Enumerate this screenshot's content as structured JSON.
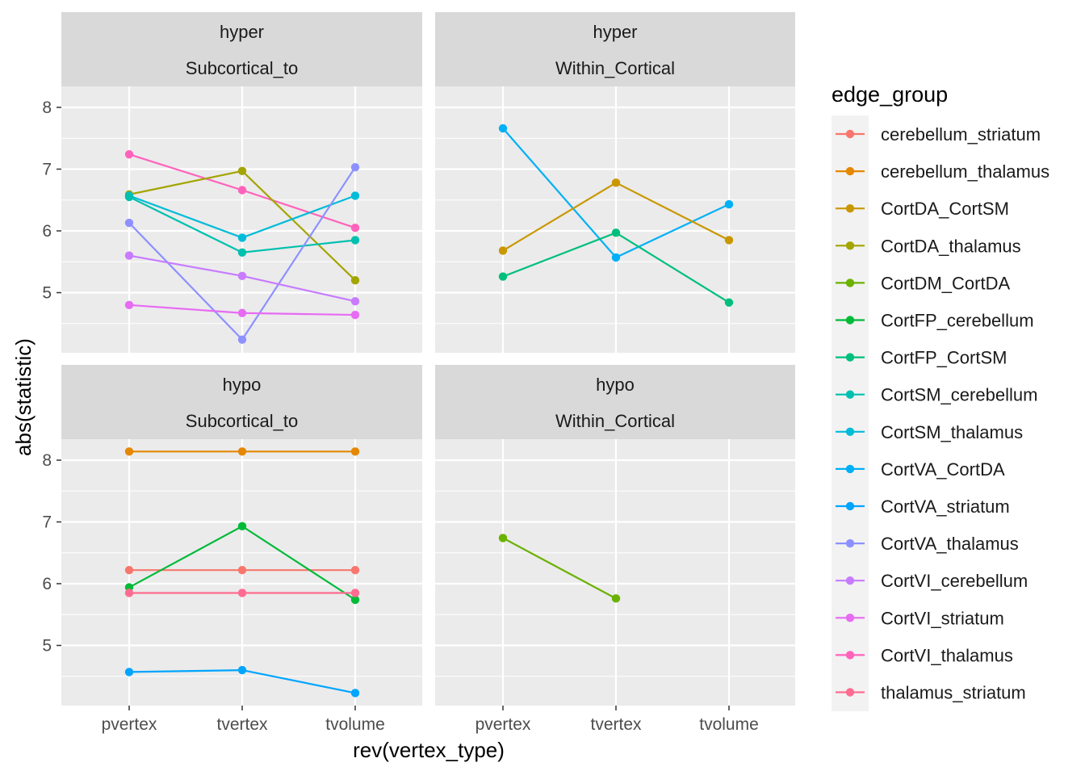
{
  "chart_data": {
    "type": "line",
    "xlabel": "rev(vertex_type)",
    "ylabel": "abs(statistic)",
    "x_categories": [
      "pvertex",
      "tvertex",
      "tvolume"
    ],
    "y_ticks": [
      5,
      6,
      7,
      8
    ],
    "grid": true,
    "facet_rows": [
      "hyper",
      "hypo"
    ],
    "facet_cols": [
      "Subcortical_to",
      "Within_Cortical"
    ],
    "legend": {
      "title": "edge_group",
      "position": "right",
      "entries": [
        {
          "name": "cerebellum_striatum",
          "color": "#F8766D"
        },
        {
          "name": "cerebellum_thalamus",
          "color": "#E58700"
        },
        {
          "name": "CortDA_CortSM",
          "color": "#C99800"
        },
        {
          "name": "CortDA_thalamus",
          "color": "#A3A500"
        },
        {
          "name": "CortDM_CortDA",
          "color": "#6BB100"
        },
        {
          "name": "CortFP_cerebellum",
          "color": "#00BA38"
        },
        {
          "name": "CortFP_CortSM",
          "color": "#00BF7D"
        },
        {
          "name": "CortSM_cerebellum",
          "color": "#00C0AF"
        },
        {
          "name": "CortSM_thalamus",
          "color": "#00BCD8"
        },
        {
          "name": "CortVA_CortDA",
          "color": "#00B0F6"
        },
        {
          "name": "CortVA_striatum",
          "color": "#00A5FF"
        },
        {
          "name": "CortVA_thalamus",
          "color": "#8D91FF"
        },
        {
          "name": "CortVI_cerebellum",
          "color": "#C77CFF"
        },
        {
          "name": "CortVI_striatum",
          "color": "#E76BF3"
        },
        {
          "name": "CortVI_thalamus",
          "color": "#FF62BC"
        },
        {
          "name": "thalamus_striatum",
          "color": "#FF6C91"
        }
      ]
    },
    "panels": [
      {
        "row": "hyper",
        "col": "Subcortical_to",
        "series": [
          {
            "name": "CortVI_thalamus",
            "values": [
              7.24,
              6.66,
              6.05
            ]
          },
          {
            "name": "CortDA_thalamus",
            "values": [
              6.59,
              6.97,
              5.2
            ]
          },
          {
            "name": "CortSM_thalamus",
            "values": [
              6.57,
              5.89,
              6.57
            ]
          },
          {
            "name": "CortSM_cerebellum",
            "values": [
              6.55,
              5.65,
              5.85
            ]
          },
          {
            "name": "CortVA_thalamus",
            "values": [
              6.13,
              4.24,
              7.03
            ]
          },
          {
            "name": "CortVI_cerebellum",
            "values": [
              5.6,
              5.27,
              4.86
            ]
          },
          {
            "name": "CortVI_striatum",
            "values": [
              4.8,
              4.67,
              4.64
            ]
          }
        ]
      },
      {
        "row": "hyper",
        "col": "Within_Cortical",
        "series": [
          {
            "name": "CortVA_CortDA",
            "values": [
              7.66,
              5.57,
              6.43
            ]
          },
          {
            "name": "CortDA_CortSM",
            "values": [
              5.68,
              6.78,
              5.85
            ]
          },
          {
            "name": "CortFP_CortSM",
            "values": [
              5.26,
              5.97,
              4.84
            ]
          }
        ]
      },
      {
        "row": "hypo",
        "col": "Subcortical_to",
        "series": [
          {
            "name": "cerebellum_thalamus",
            "values": [
              8.14,
              8.14,
              8.14
            ]
          },
          {
            "name": "cerebellum_striatum",
            "values": [
              6.22,
              6.22,
              6.22
            ]
          },
          {
            "name": "CortFP_cerebellum",
            "values": [
              5.94,
              6.93,
              5.74
            ]
          },
          {
            "name": "thalamus_striatum",
            "values": [
              5.85,
              5.85,
              5.85
            ]
          },
          {
            "name": "CortVA_striatum",
            "values": [
              4.57,
              4.6,
              4.23
            ]
          }
        ]
      },
      {
        "row": "hypo",
        "col": "Within_Cortical",
        "series": [
          {
            "name": "CortDM_CortDA",
            "values": [
              6.74,
              5.76,
              null
            ]
          }
        ]
      }
    ]
  }
}
